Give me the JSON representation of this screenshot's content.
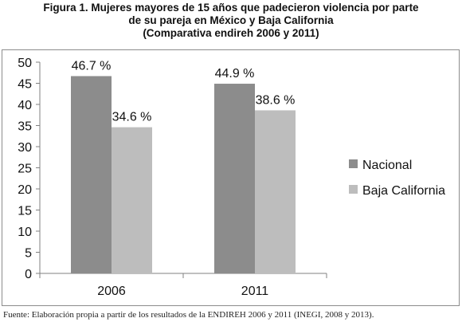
{
  "title_lines": [
    "Figura 1. Mujeres mayores de 15 años que padecieron violencia por parte",
    "de su pareja en México y Baja California",
    "(Comparativa endireh 2006 y 2011)"
  ],
  "source": "Fuente: Elaboración propia a partir de los resultados de la ENDIREH 2006 y 2011 (INEGI, 2008 y 2013).",
  "colors": {
    "Nacional": "#8c8c8c",
    "Baja California": "#bdbdbd",
    "axis": "#808080"
  },
  "chart_data": {
    "type": "bar",
    "categories": [
      "2006",
      "2011"
    ],
    "series": [
      {
        "name": "Nacional",
        "values": [
          46.7,
          44.9
        ],
        "labels": [
          "46.7 %",
          "44.9 %"
        ]
      },
      {
        "name": "Baja California",
        "values": [
          34.6,
          38.6
        ],
        "labels": [
          "34.6 %",
          "38.6 %"
        ]
      }
    ],
    "ylim": [
      0,
      50
    ],
    "yticks": [
      "0",
      "5",
      "10",
      "15",
      "20",
      "25",
      "30",
      "35",
      "40",
      "45",
      "50"
    ],
    "grid": false,
    "legend": "right"
  }
}
